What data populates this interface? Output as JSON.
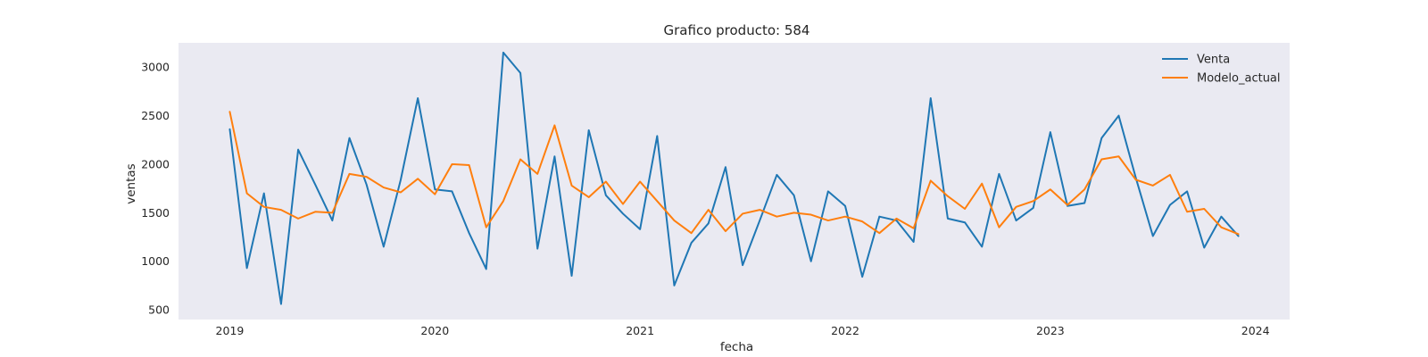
{
  "chart_data": {
    "type": "line",
    "title": "Grafico producto: 584",
    "xlabel": "fecha",
    "ylabel": "ventas",
    "x_start": "2019-01",
    "x_interval": "monthly",
    "x_ticks": [
      "2019",
      "2020",
      "2021",
      "2022",
      "2023",
      "2024"
    ],
    "y_ticks": [
      "500",
      "1000",
      "1500",
      "2000",
      "2500",
      "3000"
    ],
    "ylim": [
      400,
      3250
    ],
    "xlim": [
      "2018-10",
      "2024-03"
    ],
    "grid": false,
    "background": "#eaeaf2",
    "legend_position": "top-right",
    "series": [
      {
        "name": "Venta",
        "color": "#1f77b4",
        "values": [
          2360,
          930,
          1700,
          560,
          2150,
          1790,
          1420,
          2270,
          1790,
          1150,
          1840,
          2680,
          1740,
          1720,
          1290,
          920,
          3150,
          2940,
          1130,
          2080,
          850,
          2350,
          1680,
          1490,
          1330,
          2290,
          750,
          1190,
          1390,
          1970,
          960,
          1420,
          1890,
          1680,
          1000,
          1720,
          1570,
          840,
          1460,
          1420,
          1200,
          2680,
          1440,
          1400,
          1150,
          1900,
          1420,
          1550,
          2330,
          1570,
          1600,
          2270,
          2500,
          1860,
          1260,
          1580,
          1720,
          1140,
          1460,
          1260
        ]
      },
      {
        "name": "Modelo_actual",
        "color": "#ff7f0e",
        "values": [
          2540,
          1700,
          1560,
          1530,
          1440,
          1510,
          1500,
          1900,
          1870,
          1760,
          1710,
          1850,
          1690,
          2000,
          1990,
          1350,
          1620,
          2050,
          1900,
          2400,
          1780,
          1660,
          1820,
          1590,
          1820,
          1620,
          1420,
          1290,
          1530,
          1310,
          1490,
          1530,
          1460,
          1500,
          1480,
          1420,
          1460,
          1410,
          1290,
          1440,
          1340,
          1830,
          1670,
          1540,
          1800,
          1350,
          1560,
          1620,
          1740,
          1580,
          1740,
          2050,
          2080,
          1840,
          1780,
          1890,
          1510,
          1540,
          1350,
          1280
        ]
      }
    ]
  }
}
